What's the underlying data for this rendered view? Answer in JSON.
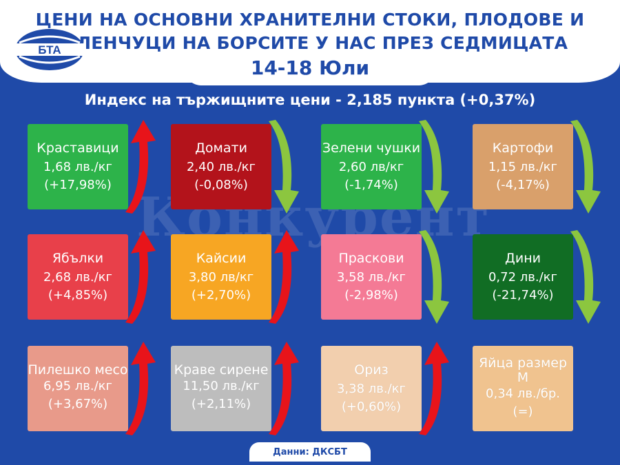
{
  "header": {
    "title_line1": "ЦЕНИ НА ОСНОВНИ ХРАНИТЕЛНИ СТОКИ, ПЛОДОВЕ И",
    "title_line2": "ЗЕЛЕНЧУЦИ НА БОРСИТЕ У НАС ПРЕЗ СЕДМИЦАТА",
    "date": "14-18 Юли",
    "logo_text": "БТА"
  },
  "index_line": "Индекс на тържищните цени - 2,185 пункта (+0,37%)",
  "watermark": "Конкурент",
  "colors": {
    "background": "#1f4aa8",
    "up_arrow": "#e8141a",
    "down_arrow": "#8cc63f"
  },
  "items": [
    {
      "name": "Краставици",
      "price": "1,68 лв./кг",
      "change": "(+17,98%)",
      "color": "#2db34a",
      "trend": "up"
    },
    {
      "name": "Домати",
      "price": "2,40 лв./кг",
      "change": "(-0,08%)",
      "color": "#b3131b",
      "trend": "down"
    },
    {
      "name": "Зелени чушки",
      "price": "2,60 лв/кг",
      "change": "(-1,74%)",
      "color": "#2db34a",
      "trend": "down"
    },
    {
      "name": "Картофи",
      "price": "1,15 лв./кг",
      "change": "(-4,17%)",
      "color": "#d9a06b",
      "trend": "down"
    },
    {
      "name": "Ябълки",
      "price": "2,68 лв./кг",
      "change": "(+4,85%)",
      "color": "#e8404a",
      "trend": "up"
    },
    {
      "name": "Кайсии",
      "price": "3,80 лв/кг",
      "change": "(+2,70%)",
      "color": "#f7a623",
      "trend": "up"
    },
    {
      "name": "Праскови",
      "price": "3,58 лв./кг",
      "change": "(-2,98%)",
      "color": "#f47a95",
      "trend": "down"
    },
    {
      "name": "Дини",
      "price": "0,72 лв./кг",
      "change": "(-21,74%)",
      "color": "#116d24",
      "trend": "down"
    },
    {
      "name": "Пилешко месо",
      "price": "6,95 лв./кг",
      "change": "(+3,67%)",
      "color": "#e89a8a",
      "trend": "up"
    },
    {
      "name": "Краве сирене",
      "price": "11,50 лв./кг",
      "change": "(+2,11%)",
      "color": "#bdbdbd",
      "trend": "up"
    },
    {
      "name": "Ориз",
      "price": "3,38 лв./кг",
      "change": "(+0,60%)",
      "color": "#f2cfae",
      "trend": "up"
    },
    {
      "name": "Яйца размер М",
      "price": "0,34 лв./бр.",
      "change": "(=)",
      "color": "#f0c38f",
      "trend": "flat"
    }
  ],
  "source": "Данни: ДКСБТ"
}
